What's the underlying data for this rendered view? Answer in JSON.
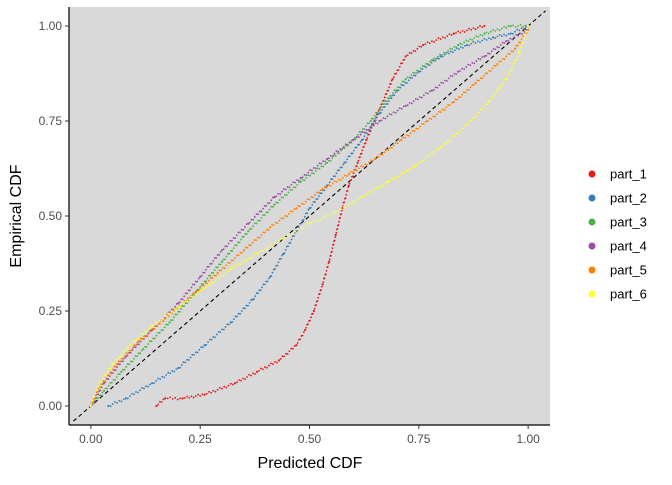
{
  "chart_data": {
    "type": "scatter",
    "title": "",
    "xlabel": "Predicted CDF",
    "ylabel": "Empirical CDF",
    "xlim": [
      -0.05,
      1.05
    ],
    "ylim": [
      -0.05,
      1.05
    ],
    "x_ticks": [
      "0.00",
      "0.25",
      "0.50",
      "0.75",
      "1.00"
    ],
    "y_ticks": [
      "0.00",
      "0.25",
      "0.50",
      "0.75",
      "1.00"
    ],
    "panel_background": "#d9d9d9",
    "grid": false,
    "legend_position": "right",
    "reference_line": {
      "style": "dashed",
      "from": [
        0,
        0
      ],
      "to": [
        1,
        1
      ],
      "color": "#000000"
    },
    "series": [
      {
        "name": "part_1",
        "color": "#e41a1c",
        "points": [
          [
            0.15,
            0.0
          ],
          [
            0.17,
            0.02
          ],
          [
            0.21,
            0.02
          ],
          [
            0.26,
            0.03
          ],
          [
            0.33,
            0.06
          ],
          [
            0.38,
            0.09
          ],
          [
            0.43,
            0.12
          ],
          [
            0.47,
            0.16
          ],
          [
            0.49,
            0.2
          ],
          [
            0.51,
            0.25
          ],
          [
            0.53,
            0.32
          ],
          [
            0.545,
            0.38
          ],
          [
            0.56,
            0.45
          ],
          [
            0.575,
            0.52
          ],
          [
            0.59,
            0.58
          ],
          [
            0.61,
            0.64
          ],
          [
            0.63,
            0.7
          ],
          [
            0.66,
            0.78
          ],
          [
            0.69,
            0.86
          ],
          [
            0.72,
            0.92
          ],
          [
            0.76,
            0.95
          ],
          [
            0.83,
            0.98
          ],
          [
            0.9,
            1.0
          ]
        ]
      },
      {
        "name": "part_2",
        "color": "#377eb8",
        "points": [
          [
            0.04,
            0.0
          ],
          [
            0.08,
            0.02
          ],
          [
            0.14,
            0.06
          ],
          [
            0.2,
            0.1
          ],
          [
            0.26,
            0.16
          ],
          [
            0.32,
            0.22
          ],
          [
            0.37,
            0.28
          ],
          [
            0.41,
            0.34
          ],
          [
            0.44,
            0.4
          ],
          [
            0.47,
            0.46
          ],
          [
            0.5,
            0.52
          ],
          [
            0.54,
            0.58
          ],
          [
            0.58,
            0.64
          ],
          [
            0.62,
            0.7
          ],
          [
            0.66,
            0.77
          ],
          [
            0.7,
            0.83
          ],
          [
            0.75,
            0.88
          ],
          [
            0.8,
            0.92
          ],
          [
            0.86,
            0.95
          ],
          [
            0.92,
            0.97
          ],
          [
            0.96,
            0.98
          ],
          [
            1.0,
            1.0
          ]
        ]
      },
      {
        "name": "part_3",
        "color": "#4daf4a",
        "points": [
          [
            0.0,
            0.0
          ],
          [
            0.03,
            0.04
          ],
          [
            0.07,
            0.09
          ],
          [
            0.12,
            0.15
          ],
          [
            0.18,
            0.22
          ],
          [
            0.24,
            0.3
          ],
          [
            0.3,
            0.38
          ],
          [
            0.36,
            0.46
          ],
          [
            0.42,
            0.53
          ],
          [
            0.48,
            0.59
          ],
          [
            0.54,
            0.64
          ],
          [
            0.6,
            0.7
          ],
          [
            0.64,
            0.75
          ],
          [
            0.68,
            0.81
          ],
          [
            0.72,
            0.86
          ],
          [
            0.78,
            0.91
          ],
          [
            0.84,
            0.95
          ],
          [
            0.9,
            0.98
          ],
          [
            0.96,
            1.0
          ],
          [
            1.0,
            1.0
          ]
        ]
      },
      {
        "name": "part_4",
        "color": "#984ea3",
        "points": [
          [
            0.0,
            0.0
          ],
          [
            0.03,
            0.06
          ],
          [
            0.08,
            0.13
          ],
          [
            0.14,
            0.2
          ],
          [
            0.2,
            0.27
          ],
          [
            0.25,
            0.34
          ],
          [
            0.3,
            0.41
          ],
          [
            0.36,
            0.48
          ],
          [
            0.42,
            0.55
          ],
          [
            0.48,
            0.6
          ],
          [
            0.54,
            0.65
          ],
          [
            0.6,
            0.7
          ],
          [
            0.66,
            0.75
          ],
          [
            0.72,
            0.79
          ],
          [
            0.78,
            0.83
          ],
          [
            0.84,
            0.88
          ],
          [
            0.9,
            0.92
          ],
          [
            0.95,
            0.96
          ],
          [
            1.0,
            0.99
          ]
        ]
      },
      {
        "name": "part_5",
        "color": "#ff7f00",
        "points": [
          [
            0.0,
            0.0
          ],
          [
            0.02,
            0.05
          ],
          [
            0.06,
            0.11
          ],
          [
            0.11,
            0.17
          ],
          [
            0.17,
            0.23
          ],
          [
            0.23,
            0.29
          ],
          [
            0.29,
            0.35
          ],
          [
            0.35,
            0.41
          ],
          [
            0.41,
            0.47
          ],
          [
            0.47,
            0.52
          ],
          [
            0.53,
            0.57
          ],
          [
            0.59,
            0.61
          ],
          [
            0.65,
            0.65
          ],
          [
            0.71,
            0.7
          ],
          [
            0.77,
            0.75
          ],
          [
            0.83,
            0.8
          ],
          [
            0.88,
            0.85
          ],
          [
            0.93,
            0.9
          ],
          [
            0.97,
            0.94
          ],
          [
            1.0,
            0.99
          ]
        ]
      },
      {
        "name": "part_6",
        "color": "#ffff33",
        "points": [
          [
            0.0,
            0.0
          ],
          [
            0.02,
            0.06
          ],
          [
            0.05,
            0.11
          ],
          [
            0.09,
            0.16
          ],
          [
            0.14,
            0.21
          ],
          [
            0.2,
            0.26
          ],
          [
            0.26,
            0.31
          ],
          [
            0.32,
            0.36
          ],
          [
            0.38,
            0.4
          ],
          [
            0.44,
            0.44
          ],
          [
            0.5,
            0.48
          ],
          [
            0.56,
            0.51
          ],
          [
            0.62,
            0.55
          ],
          [
            0.68,
            0.59
          ],
          [
            0.74,
            0.63
          ],
          [
            0.8,
            0.68
          ],
          [
            0.86,
            0.74
          ],
          [
            0.91,
            0.8
          ],
          [
            0.95,
            0.86
          ],
          [
            0.98,
            0.93
          ],
          [
            1.0,
            1.0
          ]
        ]
      }
    ]
  }
}
